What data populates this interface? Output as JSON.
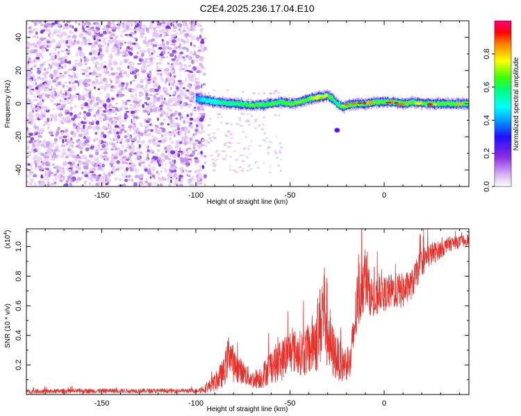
{
  "figure": {
    "title": "C2E4.2025.236.17.04.E10"
  },
  "chart_data": [
    {
      "type": "heatmap",
      "description": "spectrogram",
      "xlabel": "Height of straight line (km)",
      "ylabel": "Frequency (Hz)",
      "xlim": [
        -190,
        45
      ],
      "ylim": [
        -50,
        50
      ],
      "xticks": [
        -150,
        -100,
        -50,
        0
      ],
      "yticks": [
        -40,
        -20,
        0,
        20,
        40
      ],
      "colorbar": {
        "label": "Normalized spectral amplitude",
        "range": [
          0.0,
          1.0
        ],
        "ticks": [
          0.0,
          0.2,
          0.4,
          0.6,
          0.8
        ],
        "colormap": [
          "#ffffff",
          "#8a2be2",
          "#0000ff",
          "#00ffff",
          "#00ff00",
          "#ffff00",
          "#ff0000",
          "#ff0080"
        ]
      },
      "noise_region_x": [
        -190,
        -95
      ],
      "noise_color_levels": [
        0.05,
        0.1,
        0.2
      ],
      "signal_track": {
        "x": [
          -100,
          -95,
          -90,
          -80,
          -70,
          -60,
          -55,
          -50,
          -45,
          -40,
          -35,
          -30,
          -27,
          -25,
          -22,
          -20,
          -15,
          -10,
          -5,
          0,
          5,
          10,
          15,
          20,
          25,
          30,
          40,
          45
        ],
        "y": [
          3,
          2,
          1,
          0,
          -1,
          0,
          1,
          0,
          1,
          3,
          4,
          5,
          2,
          0,
          -2,
          -1,
          0,
          0,
          1,
          1,
          1,
          0,
          1,
          0,
          0,
          0,
          0,
          0
        ],
        "amplitude": [
          0.4,
          0.5,
          0.55,
          0.6,
          0.65,
          0.6,
          0.7,
          0.65,
          0.7,
          0.72,
          0.75,
          0.7,
          0.6,
          0.55,
          0.75,
          0.8,
          0.85,
          0.9,
          0.95,
          0.9,
          0.85,
          0.9,
          0.95,
          0.8,
          0.85,
          0.75,
          0.75,
          0.75
        ]
      },
      "isolated_blob": {
        "x": -25,
        "y": -16
      }
    },
    {
      "type": "line",
      "description": "SNR time series",
      "xlabel": "Height of straight line (km)",
      "ylabel": "SNR (10 * v/v)",
      "multiplier_label": "(x10",
      "multiplier_exp": "4",
      "multiplier_close": ")",
      "xlim": [
        -190,
        45
      ],
      "ylim": [
        0.0,
        1.12
      ],
      "xticks": [
        -150,
        -100,
        -50,
        0
      ],
      "yticks": [
        0.2,
        0.4,
        0.6,
        0.8,
        1.0
      ],
      "color": "#e8302a",
      "series": [
        {
          "x": [
            -190,
            -150,
            -120,
            -100,
            -95,
            -90,
            -85,
            -82,
            -80,
            -78,
            -75,
            -70,
            -65,
            -60,
            -55,
            -50,
            -45,
            -40,
            -35,
            -32,
            -30,
            -28,
            -25,
            -22,
            -20,
            -18,
            -15,
            -12,
            -10,
            -8,
            -5,
            -2,
            0,
            5,
            10,
            15,
            20,
            25,
            30,
            35,
            40,
            45
          ],
          "y": [
            0.02,
            0.025,
            0.025,
            0.025,
            0.04,
            0.08,
            0.15,
            0.3,
            0.2,
            0.18,
            0.15,
            0.1,
            0.12,
            0.2,
            0.22,
            0.3,
            0.28,
            0.3,
            0.4,
            0.6,
            0.45,
            0.3,
            0.25,
            0.2,
            0.22,
            0.2,
            0.55,
            0.75,
            0.8,
            0.7,
            0.6,
            0.72,
            0.68,
            0.7,
            0.7,
            0.75,
            0.9,
            0.95,
            0.98,
            1.02,
            1.03,
            1.05
          ],
          "noise": [
            0.015,
            0.015,
            0.015,
            0.015,
            0.03,
            0.06,
            0.1,
            0.15,
            0.12,
            0.1,
            0.08,
            0.06,
            0.08,
            0.12,
            0.14,
            0.15,
            0.15,
            0.18,
            0.25,
            0.35,
            0.3,
            0.2,
            0.15,
            0.12,
            0.12,
            0.12,
            0.2,
            0.25,
            0.2,
            0.15,
            0.12,
            0.15,
            0.12,
            0.12,
            0.12,
            0.1,
            0.1,
            0.08,
            0.06,
            0.05,
            0.04,
            0.04
          ]
        }
      ]
    }
  ]
}
